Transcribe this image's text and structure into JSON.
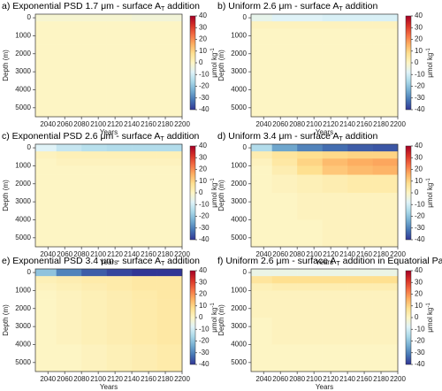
{
  "chart_data": [
    {
      "type": "heatmap",
      "title": {
        "main": "a) Exponential PSD 1.7 μm - surface A",
        "sub": "T",
        "rest": " addition"
      },
      "xlabel": "Years",
      "ylabel": "Depth (m)",
      "colorbar_label": {
        "main": "μmol kg",
        "sup": "-1"
      },
      "x_edges": [
        2025,
        2050,
        2080,
        2110,
        2140,
        2170,
        2200
      ],
      "y_edges": [
        -200,
        200,
        600,
        1000,
        1500,
        2500,
        4000,
        5500
      ],
      "z": [
        [
          -2,
          -2,
          -2,
          -2,
          -3,
          -3
        ],
        [
          0,
          0,
          0,
          0,
          0,
          0
        ],
        [
          0,
          0,
          0,
          0,
          0,
          0
        ],
        [
          0,
          0,
          0,
          0,
          0,
          0
        ],
        [
          0,
          0,
          0,
          0,
          0,
          0
        ],
        [
          0,
          0,
          0,
          0,
          0,
          0
        ],
        [
          0,
          0,
          0,
          0,
          0,
          0
        ]
      ],
      "xlim": [
        2025,
        2200
      ],
      "xticks": [
        2040,
        2060,
        2080,
        2100,
        2120,
        2140,
        2160,
        2180,
        2200
      ],
      "ylim": [
        5500,
        -200
      ],
      "yticks": [
        0,
        1000,
        2000,
        3000,
        4000,
        5000
      ],
      "zlim": [
        -40,
        40
      ],
      "zticks": [
        40,
        30,
        20,
        10,
        0,
        -10,
        -20,
        -30,
        -40
      ],
      "colormap": [
        "#313695",
        "#4575b4",
        "#74add1",
        "#abd9e9",
        "#e0f3f8",
        "#fdf5c4",
        "#fee090",
        "#fdae61",
        "#f46d43",
        "#d73027",
        "#a50026"
      ]
    },
    {
      "type": "heatmap",
      "title": {
        "main": "b) Uniform 2.6 μm - surface A",
        "sub": "T",
        "rest": " addition"
      },
      "xlabel": "Years",
      "ylabel": "Depth (m)",
      "colorbar_label": {
        "main": "μmol kg",
        "sup": "-1"
      },
      "x_edges": [
        2025,
        2050,
        2080,
        2110,
        2140,
        2170,
        2200
      ],
      "y_edges": [
        -200,
        200,
        600,
        1000,
        1500,
        2500,
        4000,
        5500
      ],
      "z": [
        [
          -6,
          -8,
          -8,
          -9,
          -9,
          -9
        ],
        [
          1,
          1,
          1,
          1,
          1,
          1
        ],
        [
          0,
          0,
          0,
          0,
          0,
          0
        ],
        [
          0,
          0,
          0,
          0,
          0,
          0
        ],
        [
          0,
          0,
          0,
          0,
          0,
          0
        ],
        [
          0,
          0,
          0,
          0,
          0,
          0
        ],
        [
          0,
          0,
          0,
          0,
          0,
          0
        ]
      ],
      "xlim": [
        2025,
        2200
      ],
      "xticks": [
        2040,
        2060,
        2080,
        2100,
        2120,
        2140,
        2160,
        2180,
        2200
      ],
      "ylim": [
        5500,
        -200
      ],
      "yticks": [
        0,
        1000,
        2000,
        3000,
        4000,
        5000
      ],
      "zlim": [
        -40,
        40
      ],
      "zticks": [
        40,
        30,
        20,
        10,
        0,
        -10,
        -20,
        -30,
        -40
      ],
      "colormap": [
        "#313695",
        "#4575b4",
        "#74add1",
        "#abd9e9",
        "#e0f3f8",
        "#fdf5c4",
        "#fee090",
        "#fdae61",
        "#f46d43",
        "#d73027",
        "#a50026"
      ]
    },
    {
      "type": "heatmap",
      "title": {
        "main": "c) Exponential PSD 2.6 μm - surface A",
        "sub": "T",
        "rest": " addition"
      },
      "xlabel": "Years",
      "ylabel": "Depth (m)",
      "colorbar_label": {
        "main": "μmol kg",
        "sup": "-1"
      },
      "x_edges": [
        2025,
        2050,
        2080,
        2110,
        2140,
        2170,
        2200
      ],
      "y_edges": [
        -200,
        200,
        600,
        1000,
        1500,
        2500,
        4000,
        5500
      ],
      "z": [
        [
          -8,
          -12,
          -14,
          -15,
          -15,
          -15
        ],
        [
          1,
          2,
          2,
          2,
          2,
          2
        ],
        [
          0,
          1,
          1,
          1,
          1,
          1
        ],
        [
          0,
          0,
          0,
          0,
          0,
          0
        ],
        [
          0,
          0,
          0,
          0,
          0,
          0
        ],
        [
          0,
          0,
          0,
          0,
          0,
          0
        ],
        [
          0,
          0,
          0,
          0,
          0,
          0
        ]
      ],
      "xlim": [
        2025,
        2200
      ],
      "xticks": [
        2040,
        2060,
        2080,
        2100,
        2120,
        2140,
        2160,
        2180,
        2200
      ],
      "ylim": [
        5500,
        -200
      ],
      "yticks": [
        0,
        1000,
        2000,
        3000,
        4000,
        5000
      ],
      "zlim": [
        -40,
        40
      ],
      "zticks": [
        40,
        30,
        20,
        10,
        0,
        -10,
        -20,
        -30,
        -40
      ],
      "colormap": [
        "#313695",
        "#4575b4",
        "#74add1",
        "#abd9e9",
        "#e0f3f8",
        "#fdf5c4",
        "#fee090",
        "#fdae61",
        "#f46d43",
        "#d73027",
        "#a50026"
      ]
    },
    {
      "type": "heatmap",
      "title": {
        "main": "d) Uniform 3.4 μm - surface A",
        "sub": "T",
        "rest": " addition"
      },
      "xlabel": "Years",
      "ylabel": "Depth (m)",
      "colorbar_label": {
        "main": "μmol kg",
        "sup": "-1"
      },
      "x_edges": [
        2025,
        2050,
        2080,
        2110,
        2140,
        2170,
        2200
      ],
      "y_edges": [
        -200,
        200,
        600,
        1000,
        1500,
        2500,
        4000,
        5500
      ],
      "z": [
        [
          -15,
          -25,
          -30,
          -33,
          -35,
          -36
        ],
        [
          3,
          6,
          8,
          9,
          10,
          10
        ],
        [
          1,
          5,
          10,
          14,
          16,
          17
        ],
        [
          0,
          3,
          8,
          12,
          14,
          15
        ],
        [
          0,
          1,
          2,
          3,
          4,
          4
        ],
        [
          0,
          0,
          1,
          1,
          1,
          1
        ],
        [
          0,
          0,
          0,
          1,
          1,
          1
        ]
      ],
      "xlim": [
        2025,
        2200
      ],
      "xticks": [
        2040,
        2060,
        2080,
        2100,
        2120,
        2140,
        2160,
        2180,
        2200
      ],
      "ylim": [
        5500,
        -200
      ],
      "yticks": [
        0,
        1000,
        2000,
        3000,
        4000,
        5000
      ],
      "zlim": [
        -40,
        40
      ],
      "zticks": [
        40,
        30,
        20,
        10,
        0,
        -10,
        -20,
        -30,
        -40
      ],
      "colormap": [
        "#313695",
        "#4575b4",
        "#74add1",
        "#abd9e9",
        "#e0f3f8",
        "#fdf5c4",
        "#fee090",
        "#fdae61",
        "#f46d43",
        "#d73027",
        "#a50026"
      ]
    },
    {
      "type": "heatmap",
      "title": {
        "main": "e) Exponential PSD 3.4 μm - surface A",
        "sub": "T",
        "rest": " addition"
      },
      "xlabel": "Years",
      "ylabel": "Depth (m)",
      "colorbar_label": {
        "main": "μmol kg",
        "sup": "-1"
      },
      "x_edges": [
        2025,
        2050,
        2080,
        2110,
        2140,
        2170,
        2200
      ],
      "y_edges": [
        -200,
        200,
        600,
        1000,
        1500,
        2500,
        4000,
        5500
      ],
      "z": [
        [
          -20,
          -30,
          -35,
          -38,
          -40,
          -40
        ],
        [
          2,
          3,
          4,
          4,
          5,
          5
        ],
        [
          1,
          2,
          3,
          4,
          5,
          5
        ],
        [
          0,
          1,
          2,
          3,
          4,
          5
        ],
        [
          0,
          1,
          2,
          3,
          4,
          5
        ],
        [
          0,
          1,
          2,
          3,
          4,
          5
        ],
        [
          0,
          0,
          1,
          2,
          3,
          4
        ]
      ],
      "xlim": [
        2025,
        2200
      ],
      "xticks": [
        2040,
        2060,
        2080,
        2100,
        2120,
        2140,
        2160,
        2180,
        2200
      ],
      "ylim": [
        5500,
        -200
      ],
      "yticks": [
        0,
        1000,
        2000,
        3000,
        4000,
        5000
      ],
      "zlim": [
        -40,
        40
      ],
      "zticks": [
        40,
        30,
        20,
        10,
        0,
        -10,
        -20,
        -30,
        -40
      ],
      "colormap": [
        "#313695",
        "#4575b4",
        "#74add1",
        "#abd9e9",
        "#e0f3f8",
        "#fdf5c4",
        "#fee090",
        "#fdae61",
        "#f46d43",
        "#d73027",
        "#a50026"
      ]
    },
    {
      "type": "heatmap",
      "title": {
        "main": "f) Uniform 2.6 μm - surface A",
        "sub": "T",
        "rest": " addition in Equatorial Pacific"
      },
      "xlabel": "Years",
      "ylabel": "Depth (m)",
      "colorbar_label": {
        "main": "μmol kg",
        "sup": "-1"
      },
      "x_edges": [
        2025,
        2050,
        2080,
        2110,
        2140,
        2170,
        2200
      ],
      "y_edges": [
        -200,
        200,
        600,
        1000,
        1500,
        2500,
        4000,
        5500
      ],
      "z": [
        [
          -5,
          -5,
          -5,
          -5,
          -5,
          -5
        ],
        [
          6,
          8,
          8,
          8,
          8,
          8
        ],
        [
          2,
          3,
          3,
          3,
          3,
          3
        ],
        [
          1,
          1,
          1,
          1,
          1,
          1
        ],
        [
          1,
          1,
          1,
          1,
          1,
          1
        ],
        [
          0,
          1,
          1,
          1,
          1,
          1
        ],
        [
          0,
          0,
          0,
          0,
          0,
          0
        ]
      ],
      "xlim": [
        2025,
        2200
      ],
      "xticks": [
        2040,
        2060,
        2080,
        2100,
        2120,
        2140,
        2160,
        2180,
        2200
      ],
      "ylim": [
        5500,
        -200
      ],
      "yticks": [
        0,
        1000,
        2000,
        3000,
        4000,
        5000
      ],
      "zlim": [
        -40,
        40
      ],
      "zticks": [
        40,
        30,
        20,
        10,
        0,
        -10,
        -20,
        -30,
        -40
      ],
      "colormap": [
        "#313695",
        "#4575b4",
        "#74add1",
        "#abd9e9",
        "#e0f3f8",
        "#fdf5c4",
        "#fee090",
        "#fdae61",
        "#f46d43",
        "#d73027",
        "#a50026"
      ]
    }
  ]
}
